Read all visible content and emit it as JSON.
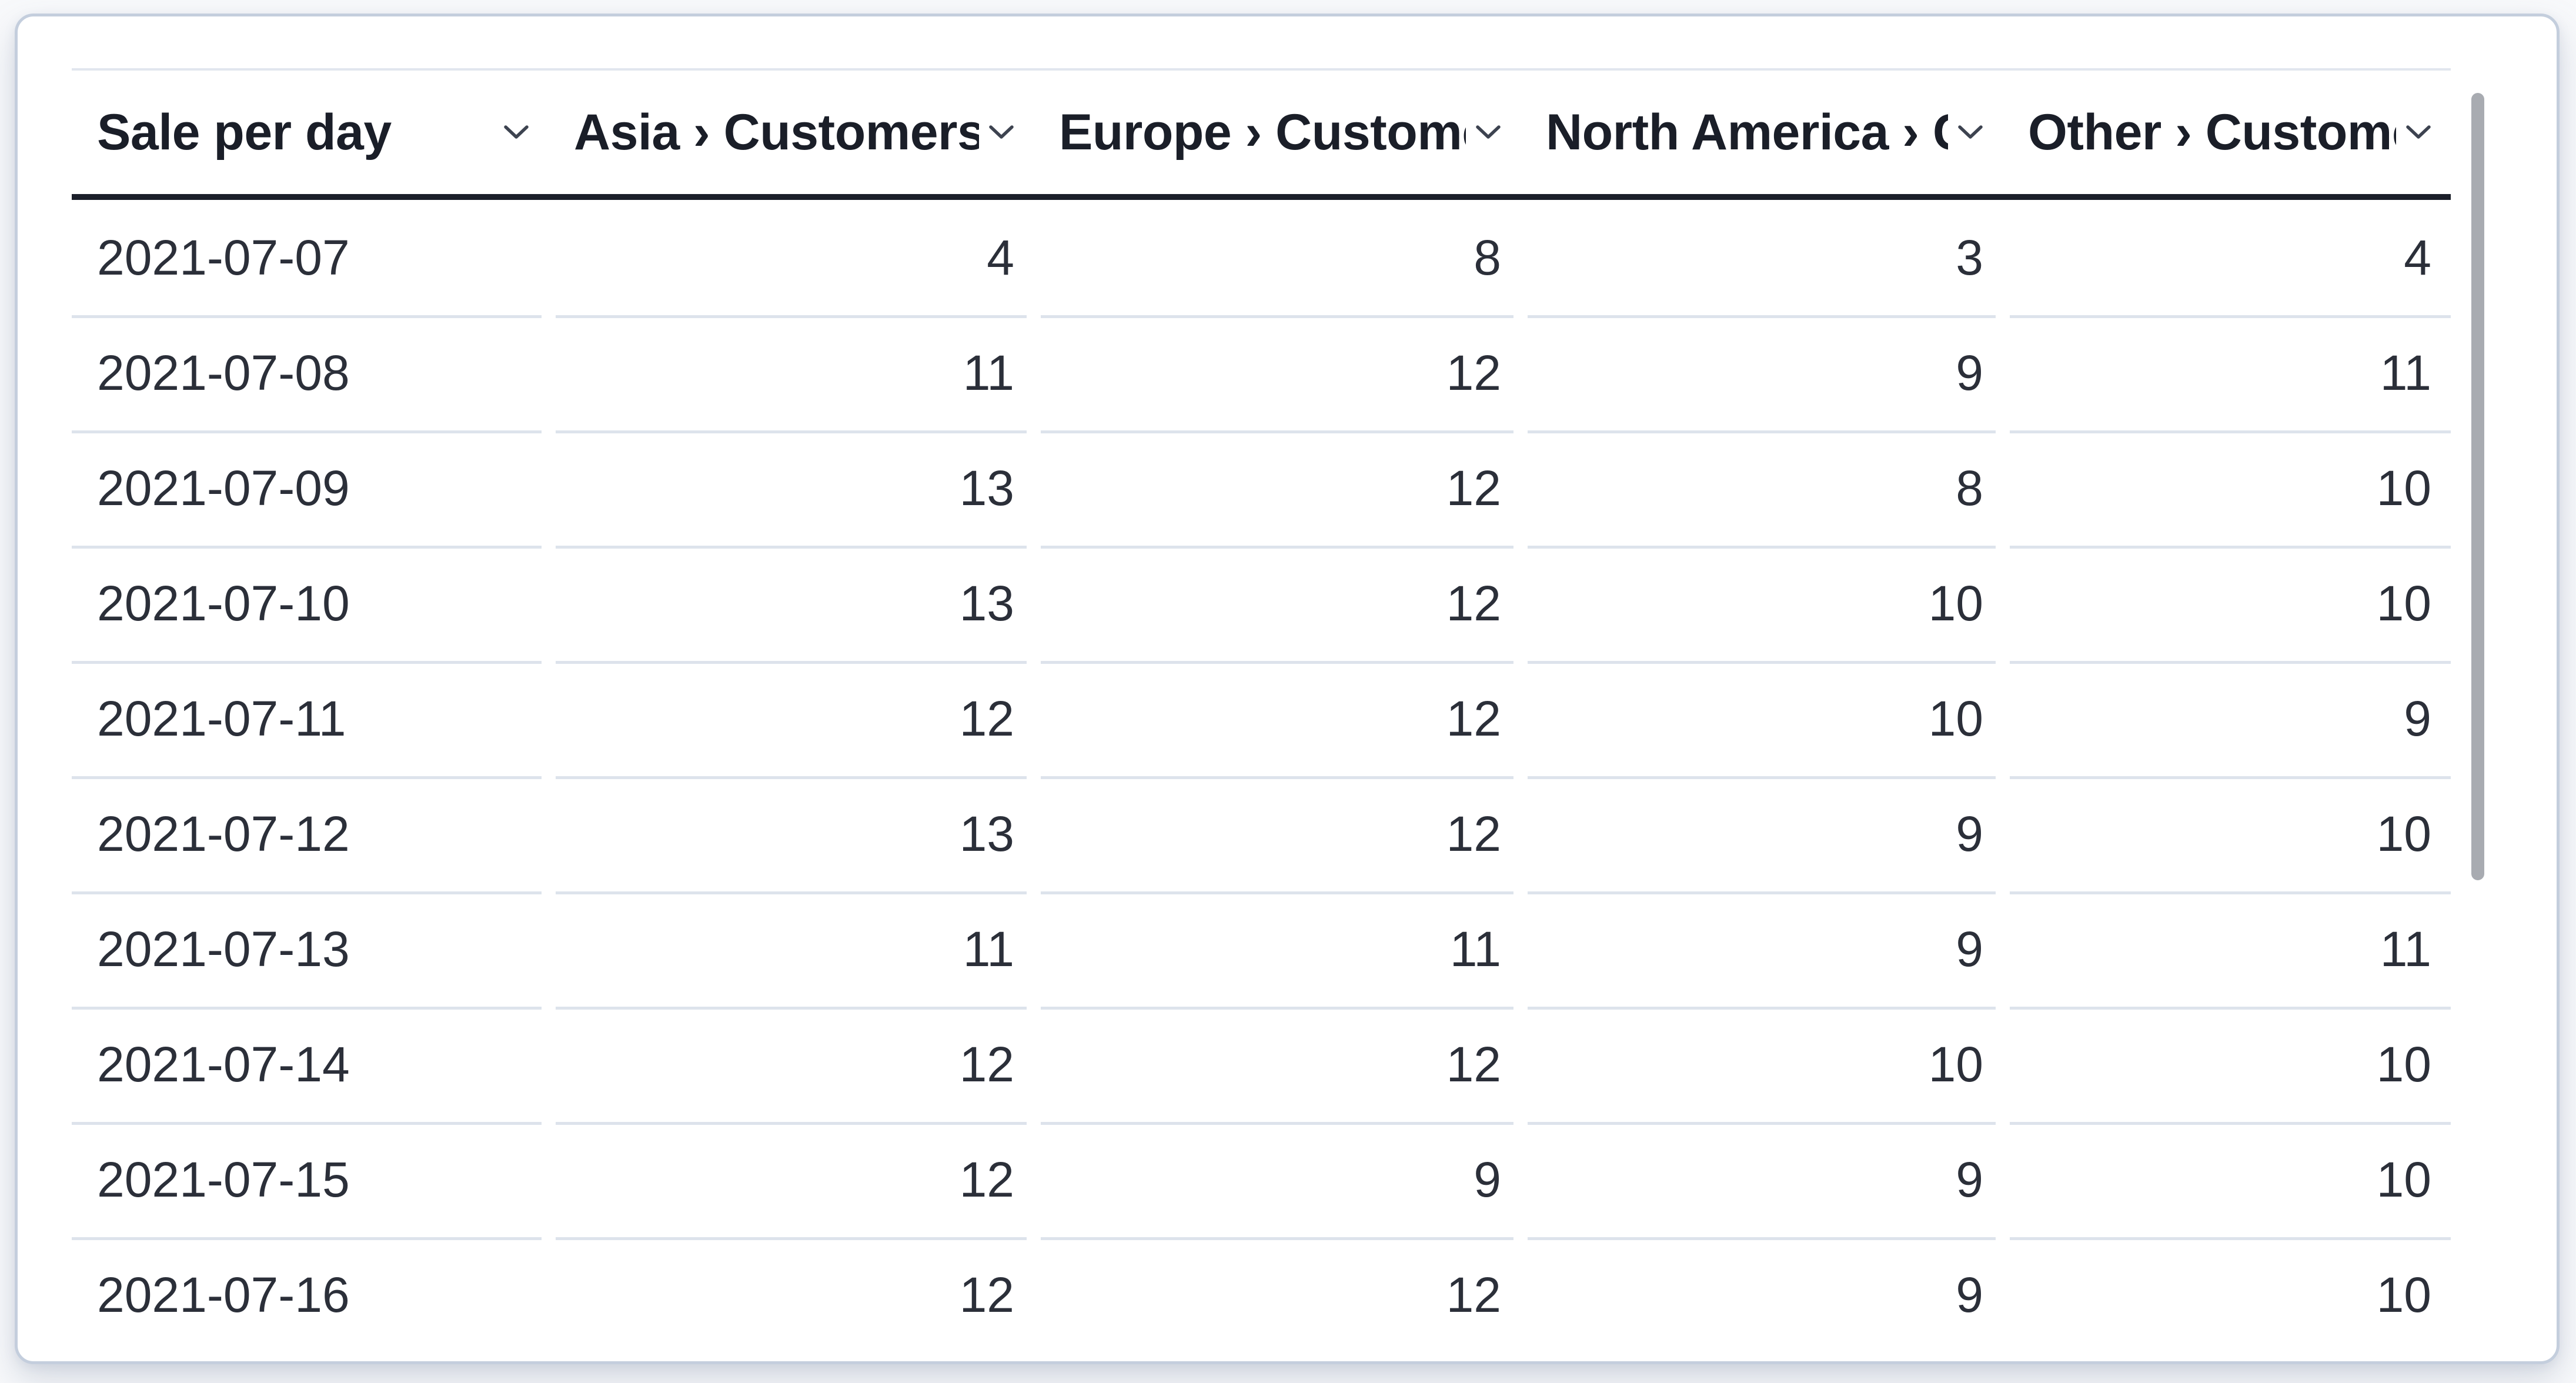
{
  "card": {
    "kind": "table-visualization-card"
  },
  "table": {
    "columns": [
      {
        "label": "Sale per day",
        "sort_icon": "chevron-down-icon"
      },
      {
        "label": "Asia › Customers",
        "sort_icon": "chevron-down-icon"
      },
      {
        "label": "Europe › Customers",
        "sort_icon": "chevron-down-icon"
      },
      {
        "label": "North America › Customers",
        "sort_icon": "chevron-down-icon"
      },
      {
        "label": "Other › Customers",
        "sort_icon": "chevron-down-icon"
      }
    ],
    "rows": [
      {
        "date": "2021-07-07",
        "values": [
          4,
          8,
          3,
          4
        ]
      },
      {
        "date": "2021-07-08",
        "values": [
          11,
          12,
          9,
          11
        ]
      },
      {
        "date": "2021-07-09",
        "values": [
          13,
          12,
          8,
          10
        ]
      },
      {
        "date": "2021-07-10",
        "values": [
          13,
          12,
          10,
          10
        ]
      },
      {
        "date": "2021-07-11",
        "values": [
          12,
          12,
          10,
          9
        ]
      },
      {
        "date": "2021-07-12",
        "values": [
          13,
          12,
          9,
          10
        ]
      },
      {
        "date": "2021-07-13",
        "values": [
          11,
          11,
          9,
          11
        ]
      },
      {
        "date": "2021-07-14",
        "values": [
          12,
          12,
          10,
          10
        ]
      },
      {
        "date": "2021-07-15",
        "values": [
          12,
          9,
          9,
          10
        ]
      },
      {
        "date": "2021-07-16",
        "values": [
          12,
          12,
          9,
          10
        ]
      }
    ]
  },
  "scrollbar": {
    "orientation": "vertical",
    "visible": true
  },
  "colors": {
    "page_background": "#f8f9fb",
    "card_background": "#ffffff",
    "card_border": "#c4cedd",
    "header_text": "#1a1e28",
    "body_text": "#2b2f39",
    "header_underline": "#1b1f2a",
    "row_separator": "#dde3ec",
    "table_top_border": "#e1e6ee",
    "chevron_icon": "#3d4350",
    "scrollbar_thumb": "#a8abb1"
  }
}
